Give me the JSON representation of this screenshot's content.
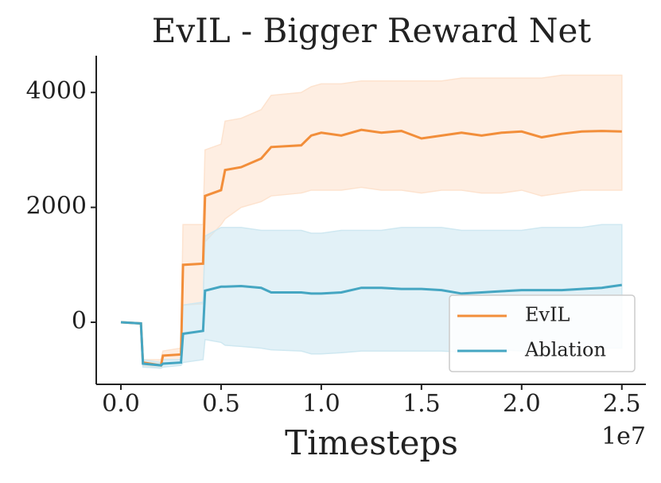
{
  "chart_data": {
    "type": "line",
    "title": "EvIL - Bigger Reward Net",
    "x_label": "Timesteps",
    "x_offset_label": "1e7",
    "x": [
      0,
      0.1,
      0.11,
      0.2,
      0.21,
      0.3,
      0.31,
      0.41,
      0.42,
      0.5,
      0.52,
      0.6,
      0.7,
      0.75,
      0.9,
      0.95,
      1.0,
      1.1,
      1.2,
      1.3,
      1.4,
      1.5,
      1.6,
      1.7,
      1.8,
      1.9,
      2.0,
      2.1,
      2.2,
      2.3,
      2.4,
      2.5
    ],
    "series": [
      {
        "name": "EvIL",
        "color": "#f28e3a",
        "band_color": "#fde3cf",
        "values": [
          0,
          -20,
          -700,
          -750,
          -580,
          -560,
          1000,
          1020,
          2200,
          2300,
          2650,
          2700,
          2850,
          3050,
          3080,
          3250,
          3300,
          3250,
          3350,
          3300,
          3330,
          3200,
          3250,
          3300,
          3250,
          3300,
          3320,
          3220,
          3280,
          3320,
          3330,
          3320
        ],
        "upper": [
          0,
          -20,
          -650,
          -650,
          -500,
          -450,
          1700,
          1700,
          3000,
          3100,
          3500,
          3550,
          3700,
          3950,
          4000,
          4100,
          4150,
          4150,
          4200,
          4200,
          4200,
          4200,
          4200,
          4250,
          4250,
          4250,
          4250,
          4250,
          4300,
          4300,
          4300,
          4300
        ],
        "lower": [
          0,
          -20,
          -750,
          -800,
          -650,
          -650,
          300,
          320,
          1400,
          1700,
          1800,
          2000,
          2100,
          2200,
          2250,
          2300,
          2300,
          2300,
          2350,
          2300,
          2300,
          2250,
          2300,
          2300,
          2250,
          2250,
          2300,
          2200,
          2250,
          2300,
          2300,
          2300
        ]
      },
      {
        "name": "Ablation",
        "color": "#45a6c2",
        "band_color": "#cfe8f1",
        "values": [
          0,
          -20,
          -720,
          -750,
          -720,
          -700,
          -200,
          -150,
          550,
          620,
          620,
          630,
          600,
          520,
          520,
          500,
          500,
          520,
          600,
          600,
          580,
          580,
          560,
          500,
          520,
          540,
          560,
          560,
          560,
          580,
          600,
          650
        ],
        "upper": [
          0,
          -20,
          -650,
          -700,
          -650,
          -650,
          300,
          350,
          1500,
          1650,
          1650,
          1650,
          1600,
          1600,
          1600,
          1550,
          1550,
          1600,
          1600,
          1600,
          1650,
          1650,
          1650,
          1600,
          1600,
          1600,
          1600,
          1650,
          1650,
          1650,
          1700,
          1700
        ],
        "lower": [
          0,
          -20,
          -780,
          -800,
          -780,
          -750,
          -700,
          -650,
          -300,
          -350,
          -400,
          -420,
          -450,
          -480,
          -500,
          -550,
          -550,
          -530,
          -500,
          -500,
          -500,
          -500,
          -500,
          -520,
          -500,
          -480,
          -500,
          -480,
          -470,
          -460,
          -450,
          -450
        ]
      }
    ],
    "xlim": [
      -0.123,
      2.62
    ],
    "ylim": [
      -1080,
      4640
    ],
    "xticks": [
      {
        "value": 0,
        "label": "0.0"
      },
      {
        "value": 0.5,
        "label": "0.5"
      },
      {
        "value": 1,
        "label": "1.0"
      },
      {
        "value": 1.5,
        "label": "1.5"
      },
      {
        "value": 2,
        "label": "2.0"
      },
      {
        "value": 2.5,
        "label": "2.5"
      }
    ],
    "yticks": [
      0,
      2000,
      4000
    ],
    "grid": false,
    "legend": "lower right"
  }
}
